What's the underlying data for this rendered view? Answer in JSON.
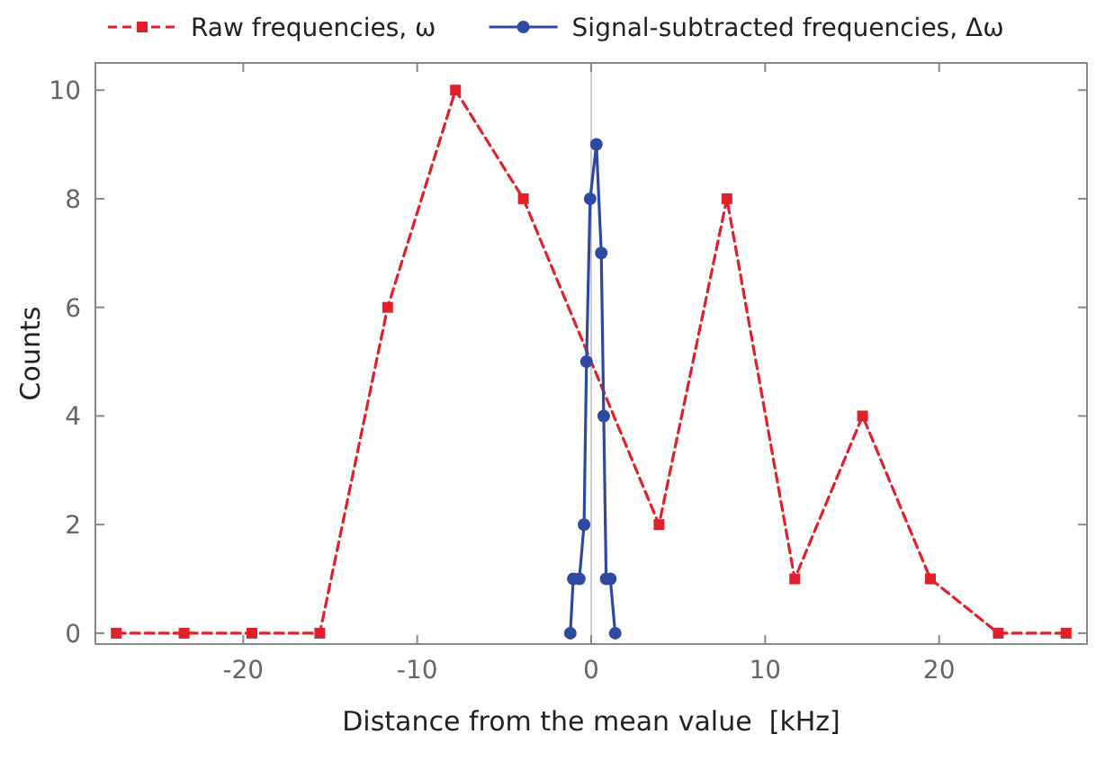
{
  "chart_data": {
    "type": "line",
    "xlabel": "Distance from the mean value  [kHz]",
    "ylabel": "Counts",
    "xlim": [
      -28.5,
      28.5
    ],
    "xticks": [
      -20,
      -10,
      0,
      10,
      20
    ],
    "ylim": [
      -0.2,
      10.5
    ],
    "yticks": [
      0,
      2,
      4,
      6,
      8,
      10
    ],
    "legend": "top",
    "grid": false,
    "ref_lines": [
      {
        "axis": "x",
        "value": 0,
        "color": "#cccccc"
      }
    ],
    "series": [
      {
        "name": "Raw frequencies, ω",
        "color": "#e0202a",
        "marker": "square",
        "line_style": "dashed",
        "x": [
          -27.3,
          -23.4,
          -19.5,
          -15.6,
          -11.7,
          -7.8,
          -3.9,
          0,
          3.9,
          7.8,
          11.7,
          15.6,
          19.5,
          23.4,
          27.3
        ],
        "values": [
          0,
          0,
          0,
          0,
          6,
          10,
          8,
          null,
          2,
          8,
          1,
          4,
          1,
          0,
          0
        ]
      },
      {
        "name": "Signal-subtracted frequencies, Δω",
        "color": "#2e4aa0",
        "marker": "circle",
        "line_style": "solid",
        "x": [
          -1.2,
          -1.03,
          -0.68,
          -0.41,
          -0.27,
          -0.06,
          0.3,
          0.58,
          0.72,
          0.86,
          1.1,
          1.38
        ],
        "values": [
          0,
          1,
          1,
          2,
          5,
          8,
          9,
          7,
          4,
          1,
          1,
          0
        ]
      }
    ]
  }
}
